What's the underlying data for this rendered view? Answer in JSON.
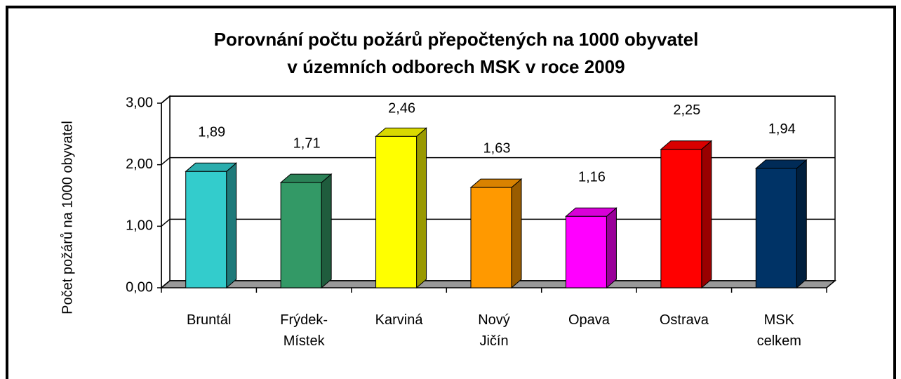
{
  "chart_data": {
    "type": "bar3d",
    "title": [
      "Porovnání počtu požárů přepočtených na 1000 obyvatel",
      "v územních odborech MSK v roce 2009"
    ],
    "y_label": "Počet požárů na  1000 obyvatel",
    "categories": [
      [
        "Bruntál"
      ],
      [
        "Frýdek-",
        "Místek"
      ],
      [
        "Karviná"
      ],
      [
        "Nový",
        "Jičín"
      ],
      [
        "Opava"
      ],
      [
        "Ostrava"
      ],
      [
        "MSK",
        "celkem"
      ]
    ],
    "values": [
      1.89,
      1.71,
      2.46,
      1.63,
      1.16,
      2.25,
      1.94
    ],
    "value_labels": [
      "1,89",
      "1,71",
      "2,46",
      "1,63",
      "1,16",
      "2,25",
      "1,94"
    ],
    "colors": [
      "#33cccc",
      "#339966",
      "#ffff00",
      "#ff9900",
      "#ff00ff",
      "#ff0000",
      "#003366"
    ],
    "ylim": [
      0,
      3
    ],
    "yticks": [
      {
        "value": 0,
        "label": "0,00"
      },
      {
        "value": 1,
        "label": "1,00"
      },
      {
        "value": 2,
        "label": "2,00"
      },
      {
        "value": 3,
        "label": "3,00"
      }
    ],
    "grid": true
  }
}
